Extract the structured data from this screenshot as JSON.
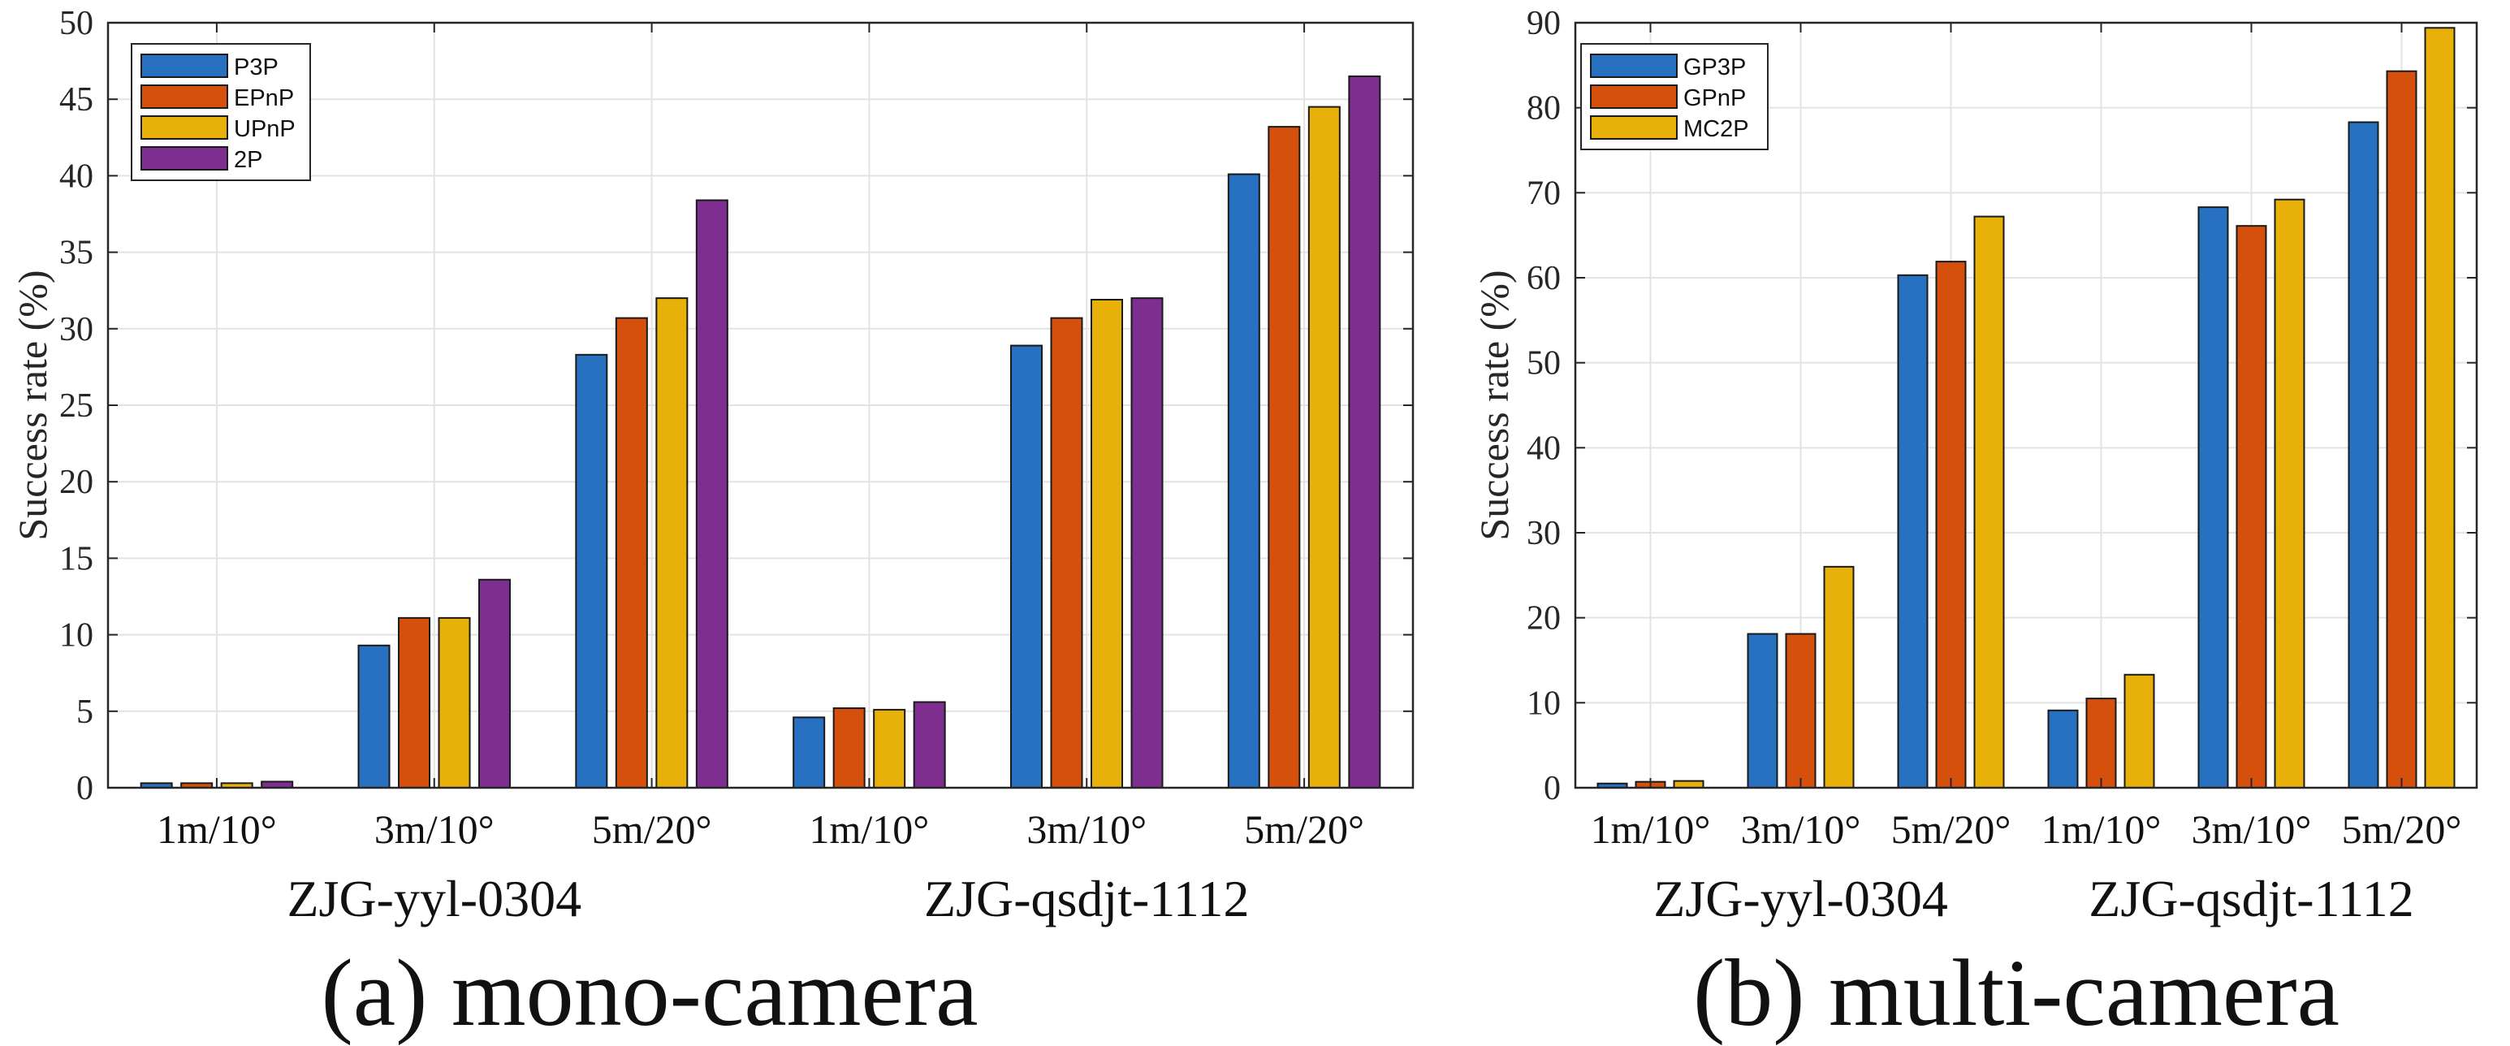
{
  "chart_data": [
    {
      "type": "bar",
      "caption": "(a) mono-camera",
      "ylabel": "Success rate (%)",
      "ylim": [
        0,
        50
      ],
      "yticks": [
        0,
        5,
        10,
        15,
        20,
        25,
        30,
        35,
        40,
        45,
        50
      ],
      "grid": true,
      "legend_position": "top-left",
      "categories": [
        "1m/10°",
        "3m/10°",
        "5m/20°",
        "1m/10°",
        "3m/10°",
        "5m/20°"
      ],
      "groups": [
        {
          "label": "ZJG-yyl-0304",
          "categories": [
            0,
            1,
            2
          ]
        },
        {
          "label": "ZJG-qsdjt-1112",
          "categories": [
            3,
            4,
            5
          ]
        }
      ],
      "series": [
        {
          "name": "P3P",
          "color": "#2870c0",
          "values": [
            0.3,
            9.3,
            28.3,
            4.6,
            28.9,
            40.1
          ]
        },
        {
          "name": "EPnP",
          "color": "#d4500c",
          "values": [
            0.3,
            11.1,
            30.7,
            5.2,
            30.7,
            43.2
          ]
        },
        {
          "name": "UPnP",
          "color": "#e8b10a",
          "values": [
            0.3,
            11.1,
            32.0,
            5.1,
            31.9,
            44.5
          ]
        },
        {
          "name": "2P",
          "color": "#7e2e8e",
          "values": [
            0.4,
            13.6,
            38.4,
            5.6,
            32.0,
            46.5
          ]
        }
      ]
    },
    {
      "type": "bar",
      "caption": "(b) multi-camera",
      "ylabel": "Success rate (%)",
      "ylim": [
        0,
        90
      ],
      "yticks": [
        0,
        10,
        20,
        30,
        40,
        50,
        60,
        70,
        80,
        90
      ],
      "grid": true,
      "legend_position": "top-left",
      "categories": [
        "1m/10°",
        "3m/10°",
        "5m/20°",
        "1m/10°",
        "3m/10°",
        "5m/20°"
      ],
      "groups": [
        {
          "label": "ZJG-yyl-0304",
          "categories": [
            0,
            1,
            2
          ]
        },
        {
          "label": "ZJG-qsdjt-1112",
          "categories": [
            3,
            4,
            5
          ]
        }
      ],
      "series": [
        {
          "name": "GP3P",
          "color": "#2870c0",
          "values": [
            0.5,
            18.1,
            60.3,
            9.1,
            68.3,
            78.3
          ]
        },
        {
          "name": "GPnP",
          "color": "#d4500c",
          "values": [
            0.7,
            18.1,
            61.9,
            10.5,
            66.1,
            84.3
          ]
        },
        {
          "name": "MC2P",
          "color": "#e8b10a",
          "values": [
            0.8,
            26.0,
            67.2,
            13.3,
            69.2,
            89.4
          ]
        }
      ]
    }
  ]
}
